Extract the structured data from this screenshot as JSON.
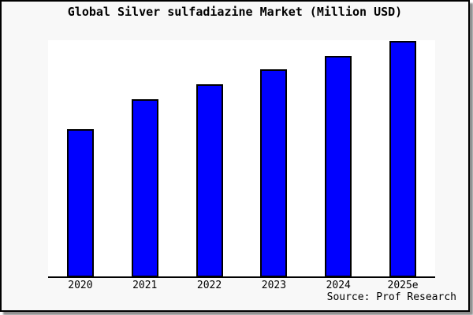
{
  "chart_data": {
    "type": "bar",
    "title": "Global Silver sulfadiazine Market (Million USD)",
    "categories": [
      "2020",
      "2021",
      "2022",
      "2023",
      "2024",
      "2025e"
    ],
    "values": [
      188,
      226,
      245,
      264,
      281,
      300
    ],
    "xlabel": "",
    "ylabel": "",
    "ylim": [
      0,
      301
    ],
    "grid": false,
    "legend": false,
    "yaxis_tick_labels_visible": false,
    "bar_color": "#0000ff",
    "bar_edge_color": "#000000"
  },
  "source": {
    "label": "Source: Prof Research"
  },
  "colors": {
    "canvas_background": "#f8f8f8",
    "plot_background": "#ffffff",
    "bar_fill": "#0000ff",
    "bar_edge": "#000000",
    "frame_border": "#000000",
    "axis_line": "#000000",
    "text": "#000000",
    "shadow": "#8f8f8f"
  }
}
